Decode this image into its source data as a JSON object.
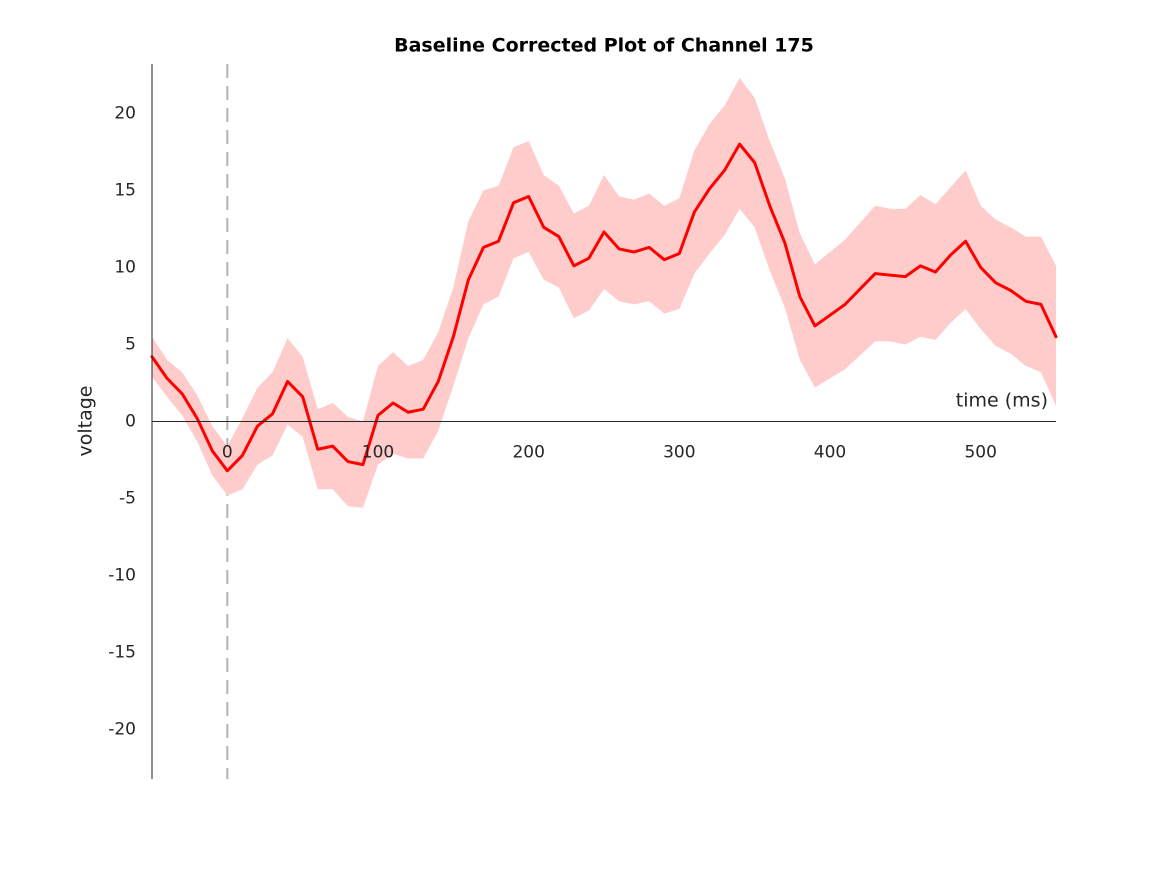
{
  "chart_data": {
    "type": "line",
    "title": "Baseline Corrected Plot of Channel 175",
    "xlabel": "time (ms)",
    "ylabel": "voltage",
    "x": [
      -50,
      -40,
      -30,
      -20,
      -10,
      0,
      10,
      20,
      30,
      40,
      50,
      60,
      70,
      80,
      90,
      100,
      110,
      120,
      130,
      140,
      150,
      160,
      170,
      180,
      190,
      200,
      210,
      220,
      230,
      240,
      250,
      260,
      270,
      280,
      290,
      300,
      310,
      320,
      330,
      340,
      350,
      360,
      370,
      380,
      390,
      400,
      410,
      420,
      430,
      440,
      450,
      460,
      470,
      480,
      490,
      500,
      510,
      520,
      530,
      540,
      550
    ],
    "series": [
      {
        "color": "#ff0000",
        "values": [
          4.2,
          2.8,
          1.8,
          0.2,
          -1.9,
          -3.2,
          -2.2,
          -0.3,
          0.5,
          2.6,
          1.6,
          -1.8,
          -1.6,
          -2.6,
          -2.8,
          0.4,
          1.2,
          0.6,
          0.8,
          2.6,
          5.5,
          9.2,
          11.3,
          11.7,
          14.2,
          14.6,
          12.6,
          12,
          10.1,
          10.6,
          12.3,
          11.2,
          11,
          11.3,
          10.5,
          10.9,
          13.6,
          15.1,
          16.3,
          18,
          16.8,
          14,
          11.6,
          8.1,
          6.2,
          6.9,
          7.6,
          8.6,
          9.6,
          9.5,
          9.4,
          10.1,
          9.7,
          10.8,
          11.7,
          10,
          9,
          8.5,
          7.8,
          7.6,
          5.5
        ],
        "upper": [
          5.5,
          4,
          3.2,
          1.7,
          -0.3,
          -1.6,
          0.2,
          2.2,
          3.2,
          5.4,
          4.2,
          0.8,
          1.2,
          0.3,
          0,
          3.6,
          4.5,
          3.6,
          4,
          5.8,
          8.7,
          13,
          15,
          15.3,
          17.8,
          18.2,
          16,
          15.3,
          13.5,
          14,
          16,
          14.6,
          14.4,
          14.8,
          14,
          14.5,
          17.6,
          19.3,
          20.5,
          22.3,
          21,
          18.2,
          15.8,
          12.2,
          10.2,
          11,
          11.8,
          12.9,
          14,
          13.8,
          13.8,
          14.7,
          14.1,
          15.2,
          16.3,
          14,
          13.1,
          12.6,
          12,
          12,
          10.1
        ],
        "lower": [
          2.9,
          1.6,
          0.4,
          -1.3,
          -3.5,
          -4.8,
          -4.4,
          -2.8,
          -2.2,
          -0.2,
          -1,
          -4.4,
          -4.4,
          -5.5,
          -5.6,
          -2.8,
          -2.1,
          -2.4,
          -2.4,
          -0.6,
          2.3,
          5.4,
          7.6,
          8.1,
          10.6,
          11,
          9.2,
          8.7,
          6.7,
          7.2,
          8.6,
          7.8,
          7.6,
          7.8,
          7,
          7.3,
          9.6,
          10.9,
          12.1,
          13.8,
          12.6,
          9.8,
          7.4,
          4,
          2.2,
          2.8,
          3.4,
          4.3,
          5.2,
          5.2,
          5,
          5.5,
          5.3,
          6.4,
          7.3,
          6,
          4.9,
          4.4,
          3.6,
          3.2,
          1
        ],
        "band_color": "#ffcccc"
      }
    ],
    "vline": 0,
    "xlim": [
      -50,
      550
    ],
    "xticks": [
      0,
      100,
      200,
      300,
      400,
      500
    ],
    "ylim": [
      -23.2,
      23.2
    ],
    "yticks": [
      -20,
      -15,
      -10,
      -5,
      0,
      5,
      10,
      15,
      20
    ],
    "grid": false
  }
}
